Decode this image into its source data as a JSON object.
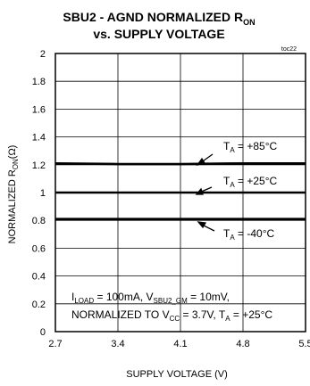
{
  "chart_data": {
    "type": "line",
    "title": {
      "line1_main": "SBU2 - AGND NORMALIZED R",
      "line1_sub": "ON",
      "line2": "vs. SUPPLY VOLTAGE"
    },
    "figure_id": "toc22",
    "xlabel": "SUPPLY VOLTAGE (V)",
    "ylabel": {
      "main": "NORMALIZED R",
      "sub": "ON",
      "unit": "(Ω)"
    },
    "xlim": [
      2.7,
      5.5
    ],
    "ylim": [
      0,
      2
    ],
    "x_ticks": [
      "2.7",
      "3.4",
      "4.1",
      "4.8",
      "5.5"
    ],
    "y_ticks": [
      "0",
      "0.2",
      "0.4",
      "0.6",
      "0.8",
      "1",
      "1.2",
      "1.4",
      "1.6",
      "1.8",
      "2"
    ],
    "grid": true,
    "series": [
      {
        "name": "T_A = +85°C",
        "x": [
          2.7,
          3.4,
          4.1,
          4.8,
          5.5
        ],
        "values": [
          1.21,
          1.205,
          1.205,
          1.21,
          1.21
        ]
      },
      {
        "name": "T_A = +25°C",
        "x": [
          2.7,
          3.4,
          4.1,
          4.8,
          5.5
        ],
        "values": [
          1.0,
          1.0,
          1.0,
          1.0,
          1.0
        ]
      },
      {
        "name": "T_A = -40°C",
        "x": [
          2.7,
          3.4,
          4.1,
          4.8,
          5.5
        ],
        "values": [
          0.81,
          0.81,
          0.81,
          0.81,
          0.81
        ]
      }
    ],
    "annotations": [
      {
        "main": "T",
        "sub": "A",
        "rest": " = +85°C"
      },
      {
        "main": "T",
        "sub": "A",
        "rest": " = +25°C"
      },
      {
        "main": "T",
        "sub": "A",
        "rest": " = -40°C"
      }
    ],
    "conditions": {
      "line1": {
        "p1": "I",
        "s1": "LOAD",
        "p2": " = 100mA, V",
        "s2": "SBU2_GM",
        "p3": " = 10mV,"
      },
      "line2": {
        "p1": "NORMALIZED TO V",
        "s1": "CC",
        "p2": " = 3.7V, T",
        "s2": "A",
        "p3": " = +25°C"
      }
    }
  }
}
